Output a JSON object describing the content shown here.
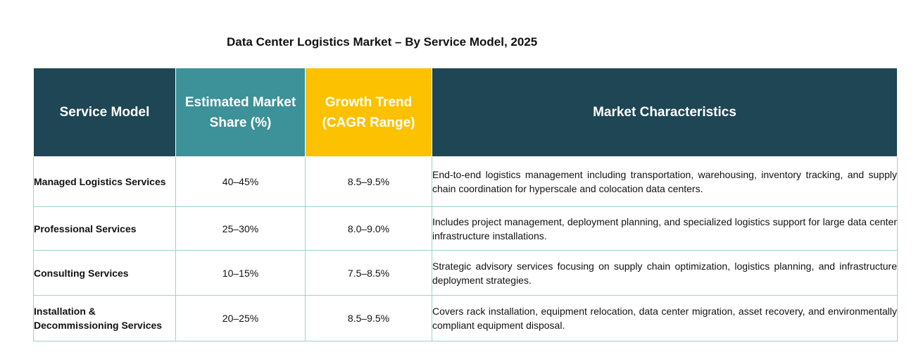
{
  "title": "Data Center Logistics Market – By Service Model, 2025",
  "table": {
    "headers": {
      "service_model": "Service Model",
      "share_line1": "Estimated Market",
      "share_line2": "Share (%)",
      "growth_line1": "Growth Trend",
      "growth_line2": "(CAGR Range)",
      "characteristics": "Market Characteristics"
    },
    "rows": [
      {
        "service_model": "Managed Logistics Services",
        "share": "40–45%",
        "growth": "8.5–9.5%",
        "characteristics": "End-to-end logistics management including transportation, warehousing, inventory tracking, and supply chain coordination for hyperscale and colocation data centers."
      },
      {
        "service_model": "Professional Services",
        "share": "25–30%",
        "growth": "8.0–9.0%",
        "characteristics": "Includes project management, deployment planning, and specialized logistics support for large data center infrastructure installations."
      },
      {
        "service_model": "Consulting Services",
        "share": "10–15%",
        "growth": "7.5–8.5%",
        "characteristics": "Strategic advisory services focusing on supply chain optimization, logistics planning, and infrastructure deployment strategies."
      },
      {
        "service_model": "Installation & Decommissioning Services",
        "share": "20–25%",
        "growth": "8.5–9.5%",
        "characteristics": "Covers rack installation, equipment relocation, data center migration, asset recovery, and environmentally compliant equipment disposal."
      }
    ]
  },
  "colors": {
    "header_dark_teal": "#1e4654",
    "header_teal": "#3d9198",
    "header_yellow": "#fcc100",
    "grid_line": "#9fd0cf"
  }
}
